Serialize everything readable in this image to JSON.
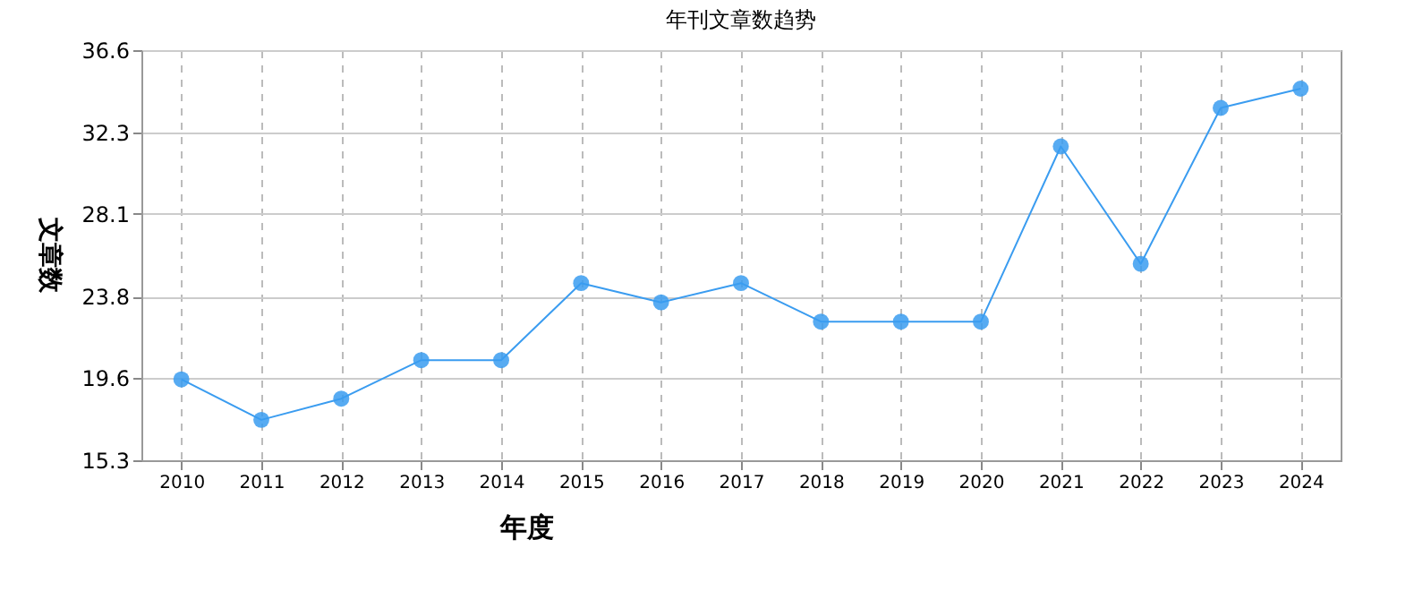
{
  "chart_data": {
    "type": "line",
    "title": "年刊文章数趋势",
    "xlabel": "年度",
    "ylabel": "文章数",
    "categories": [
      "2010",
      "2011",
      "2012",
      "2013",
      "2014",
      "2015",
      "2016",
      "2017",
      "2018",
      "2019",
      "2020",
      "2021",
      "2022",
      "2023",
      "2024"
    ],
    "series": [
      {
        "color": "#3a9cf0",
        "values": [
          19.5,
          17.4,
          18.5,
          20.5,
          20.5,
          24.5,
          23.5,
          24.5,
          22.5,
          22.5,
          22.5,
          31.6,
          25.5,
          33.6,
          34.6
        ]
      }
    ],
    "ylim": [
      15.3,
      36.6
    ],
    "yticks": [
      15.3,
      19.6,
      23.8,
      28.1,
      32.3,
      36.6
    ],
    "grid": true,
    "marker": "circle",
    "line_style": "solid"
  }
}
